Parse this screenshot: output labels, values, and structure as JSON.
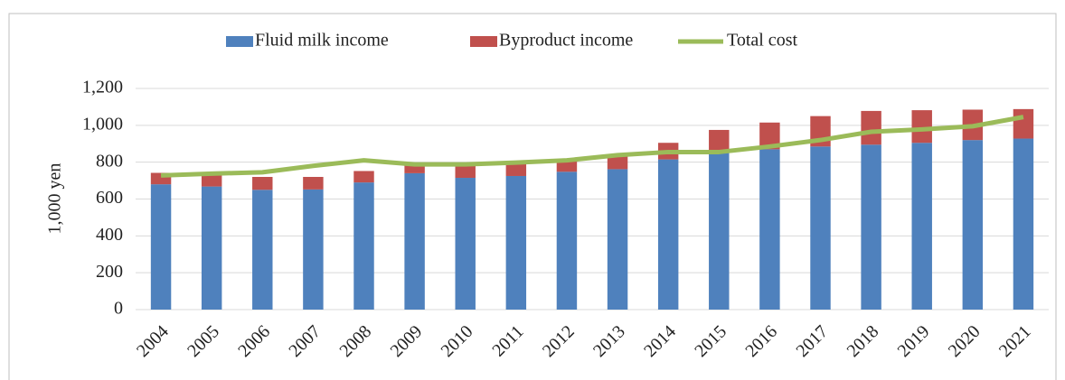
{
  "chart_data": {
    "type": "stacked-bar-line",
    "y_label": "1,000 yen",
    "categories": [
      "2004",
      "2005",
      "2006",
      "2007",
      "2008",
      "2009",
      "2010",
      "2011",
      "2012",
      "2013",
      "2014",
      "2015",
      "2016",
      "2017",
      "2018",
      "2019",
      "2020",
      "2021"
    ],
    "series": [
      {
        "name": "Fluid milk income",
        "color": "#4f81bd",
        "kind": "bar",
        "values": [
          680,
          668,
          650,
          652,
          690,
          740,
          715,
          725,
          748,
          762,
          815,
          850,
          870,
          885,
          895,
          905,
          920,
          928
        ]
      },
      {
        "name": "Byproduct income",
        "color": "#c0504d",
        "kind": "bar",
        "values": [
          62,
          62,
          70,
          68,
          62,
          50,
          70,
          65,
          57,
          73,
          90,
          125,
          145,
          165,
          183,
          177,
          165,
          160
        ]
      },
      {
        "name": "Total cost",
        "color": "#9bbb59",
        "kind": "line",
        "values": [
          728,
          738,
          745,
          780,
          810,
          788,
          788,
          798,
          810,
          838,
          855,
          855,
          885,
          920,
          965,
          978,
          995,
          1045
        ]
      }
    ],
    "ylim": [
      0,
      1200
    ],
    "yticks": [
      0,
      200,
      400,
      600,
      800,
      {
        "value": 1000,
        "label": "1,000"
      },
      {
        "value": 1200,
        "label": "1,200"
      }
    ],
    "grid": true,
    "legend": "top"
  }
}
